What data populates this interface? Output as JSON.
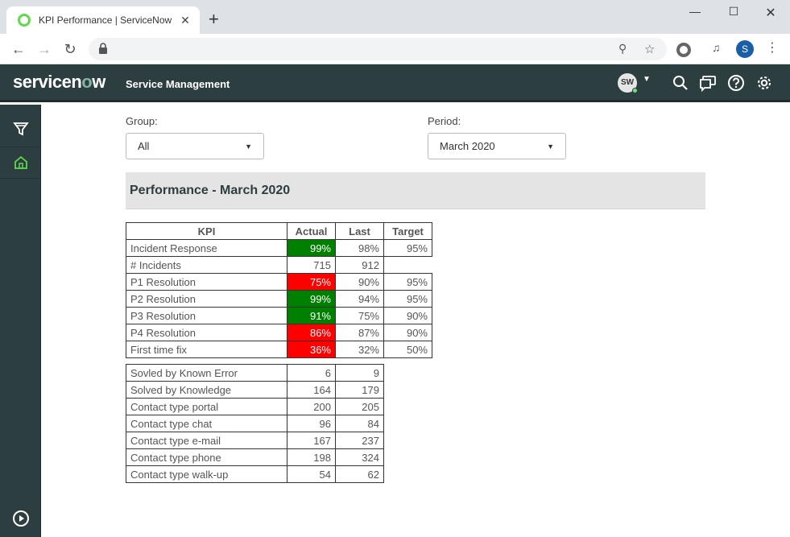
{
  "browser": {
    "tab_title": "KPI Performance | ServiceNow",
    "tab_close": "✕",
    "new_tab": "+",
    "profile_initial": "S"
  },
  "header": {
    "logo_pre": "servicen",
    "logo_o": "o",
    "logo_post": "w",
    "app_name": "Service Management",
    "avatar_initials": "SW"
  },
  "filters": {
    "group_label": "Group:",
    "group_value": "All",
    "period_label": "Period:",
    "period_value": "March 2020"
  },
  "performance": {
    "title": "Performance - March 2020",
    "columns": [
      "KPI",
      "Actual",
      "Last",
      "Target"
    ],
    "kpi_rows": [
      {
        "name": "Incident Response",
        "actual": "99%",
        "status": "green",
        "last": "98%",
        "target": "95%"
      },
      {
        "name": "# Incidents",
        "actual": "715",
        "status": "none",
        "last": "912",
        "target": ""
      },
      {
        "name": "P1 Resolution",
        "actual": "75%",
        "status": "red",
        "last": "90%",
        "target": "95%"
      },
      {
        "name": "P2 Resolution",
        "actual": "99%",
        "status": "green",
        "last": "94%",
        "target": "95%"
      },
      {
        "name": "P3 Resolution",
        "actual": "91%",
        "status": "green",
        "last": "75%",
        "target": "90%"
      },
      {
        "name": "P4 Resolution",
        "actual": "86%",
        "status": "red",
        "last": "87%",
        "target": "90%"
      },
      {
        "name": "First time fix",
        "actual": "36%",
        "status": "red",
        "last": "32%",
        "target": "50%"
      }
    ],
    "stat_rows": [
      {
        "name": "Sovled by Known Error",
        "actual": "6",
        "last": "9"
      },
      {
        "name": "Solved by Knowledge",
        "actual": "164",
        "last": "179"
      },
      {
        "name": "Contact type portal",
        "actual": "200",
        "last": "205"
      },
      {
        "name": "Contact type chat",
        "actual": "96",
        "last": "84"
      },
      {
        "name": "Contact type e-mail",
        "actual": "167",
        "last": "237"
      },
      {
        "name": "Contact type phone",
        "actual": "198",
        "last": "324"
      },
      {
        "name": "Contact type walk-up",
        "actual": "54",
        "last": "62"
      }
    ]
  },
  "colors": {
    "good": "#008000",
    "bad": "#ff0000",
    "header_bg": "#2d3e40",
    "logo_accent": "#81b5a1"
  }
}
